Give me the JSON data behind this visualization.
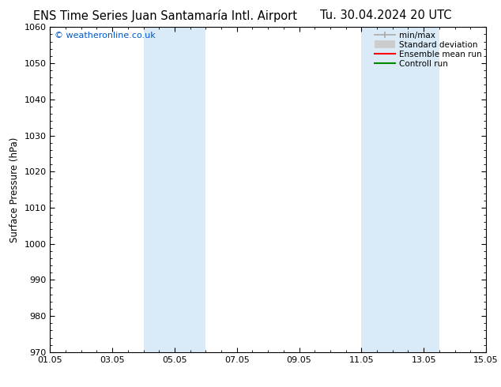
{
  "title_left": "ENS Time Series Juan Santamaría Intl. Airport",
  "title_right": "Tu. 30.04.2024 20 UTC",
  "ylabel": "Surface Pressure (hPa)",
  "ylim": [
    970,
    1060
  ],
  "yticks": [
    970,
    980,
    990,
    1000,
    1010,
    1020,
    1030,
    1040,
    1050,
    1060
  ],
  "xlim_start": 0,
  "xlim_end": 14,
  "xtick_labels": [
    "01.05",
    "03.05",
    "05.05",
    "07.05",
    "09.05",
    "11.05",
    "13.05",
    "15.05"
  ],
  "xtick_positions": [
    0,
    2,
    4,
    6,
    8,
    10,
    12,
    14
  ],
  "shaded_bands": [
    {
      "x_start": 3.0,
      "x_end": 5.0,
      "color": "#daeaf7"
    },
    {
      "x_start": 10.0,
      "x_end": 12.5,
      "color": "#daeaf7"
    }
  ],
  "copyright_text": "© weatheronline.co.uk",
  "copyright_color": "#0055cc",
  "legend_entries": [
    {
      "label": "min/max",
      "color": "#aaaaaa",
      "lw": 1.2,
      "type": "line_with_caps"
    },
    {
      "label": "Standard deviation",
      "color": "#cccccc",
      "lw": 7,
      "type": "thick_line"
    },
    {
      "label": "Ensemble mean run",
      "color": "#ff0000",
      "lw": 1.5,
      "type": "line"
    },
    {
      "label": "Controll run",
      "color": "#008800",
      "lw": 1.5,
      "type": "line"
    }
  ],
  "bg_color": "#ffffff",
  "title_fontsize": 10.5,
  "axis_label_fontsize": 8.5,
  "tick_fontsize": 8,
  "legend_fontsize": 7.5
}
